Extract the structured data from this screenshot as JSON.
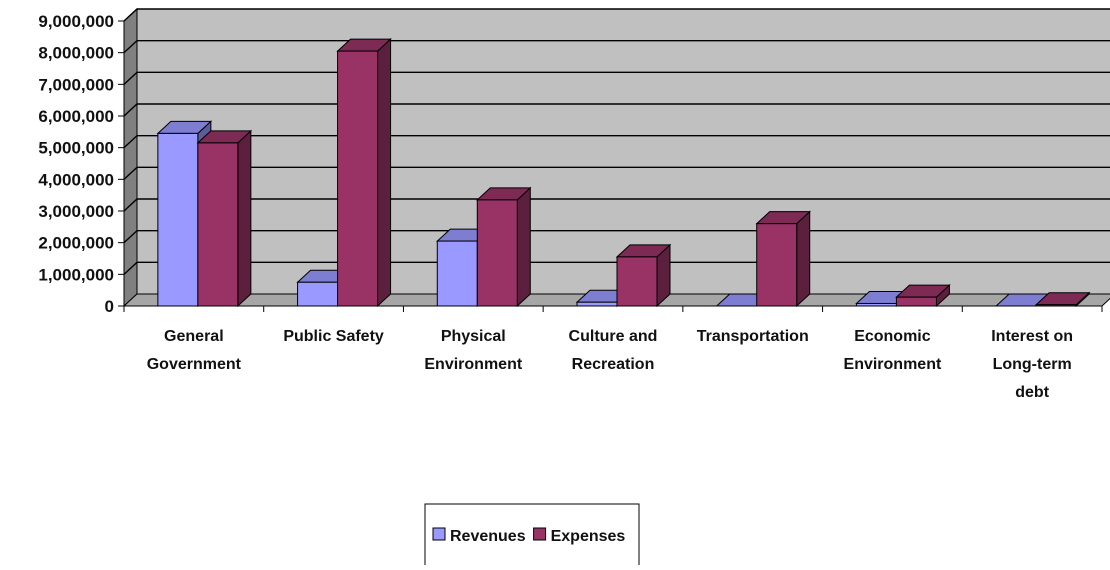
{
  "chart_data": {
    "type": "bar",
    "title": "",
    "xlabel": "",
    "ylabel": "",
    "ylim": [
      0,
      9000000
    ],
    "y_ticks": [
      "0",
      "1,000,000",
      "2,000,000",
      "3,000,000",
      "4,000,000",
      "5,000,000",
      "6,000,000",
      "7,000,000",
      "8,000,000",
      "9,000,000"
    ],
    "categories": [
      [
        "General",
        "Government"
      ],
      [
        "Public Safety"
      ],
      [
        "Physical",
        "Environment"
      ],
      [
        "Culture and",
        "Recreation"
      ],
      [
        "Transportation"
      ],
      [
        "Economic",
        "Environment"
      ],
      [
        "Interest on",
        "Long-term",
        "debt"
      ]
    ],
    "series": [
      {
        "name": "Revenues",
        "values": [
          5450000,
          750000,
          2050000,
          120000,
          0,
          80000,
          0
        ],
        "color": "#9999ff"
      },
      {
        "name": "Expenses",
        "values": [
          5150000,
          8050000,
          3350000,
          1550000,
          2600000,
          280000,
          40000
        ],
        "color": "#993366"
      }
    ],
    "grid": true,
    "legend_position": "bottom",
    "style": "3d-clustered-column",
    "wall_color": "#c0c0c0"
  }
}
